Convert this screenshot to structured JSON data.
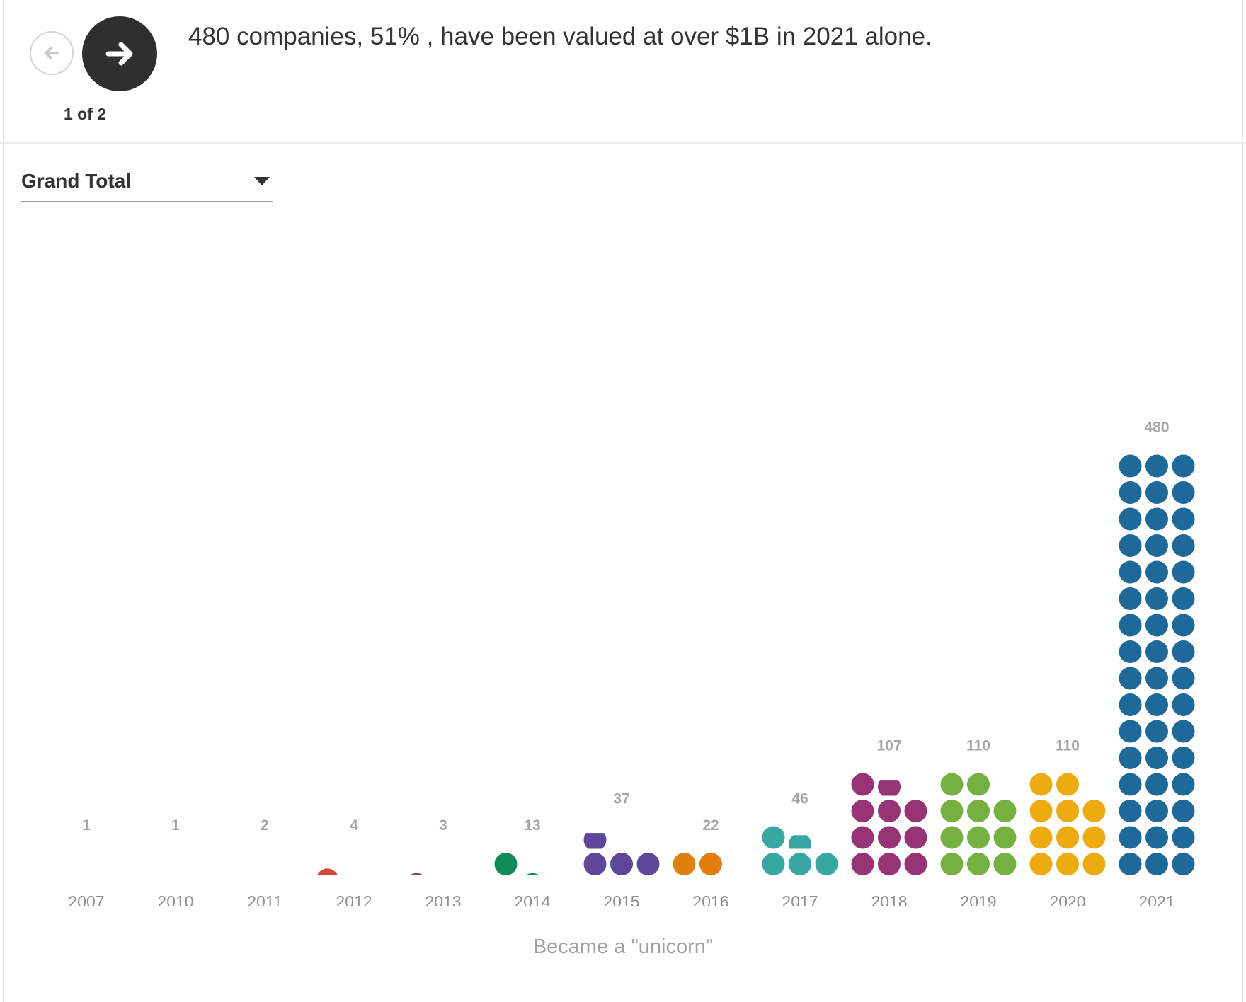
{
  "header": {
    "headline": "480 companies, 51% , have been valued at over $1B in 2021 alone.",
    "step": "1 of 2",
    "prev_icon": "arrow-left-icon",
    "next_icon": "arrow-right-icon"
  },
  "filter": {
    "selected": "Grand Total",
    "icon": "caret-down-icon"
  },
  "chart_data": {
    "type": "dot-plot",
    "x": [
      "2007",
      "2010",
      "2011",
      "2012",
      "2013",
      "2014",
      "2015",
      "2016",
      "2017",
      "2018",
      "2019",
      "2020",
      "2021"
    ],
    "values": [
      1,
      1,
      2,
      4,
      3,
      13,
      37,
      22,
      46,
      107,
      110,
      110,
      480
    ],
    "xlabel": "Became a \"unicorn\"",
    "colors": [
      "#2aa59b",
      "#6b6b6b",
      "#a3459b",
      "#d04a36",
      "#7b3f80",
      "#0f8b57",
      "#5e479a",
      "#e27e0b",
      "#38a7a4",
      "#963475",
      "#76b041",
      "#eeab10",
      "#1d6a9a"
    ],
    "value_labels": [
      "1",
      "1",
      "2",
      "4",
      "3",
      "13",
      "37",
      "22",
      "46",
      "107",
      "110",
      "110",
      "480"
    ]
  }
}
